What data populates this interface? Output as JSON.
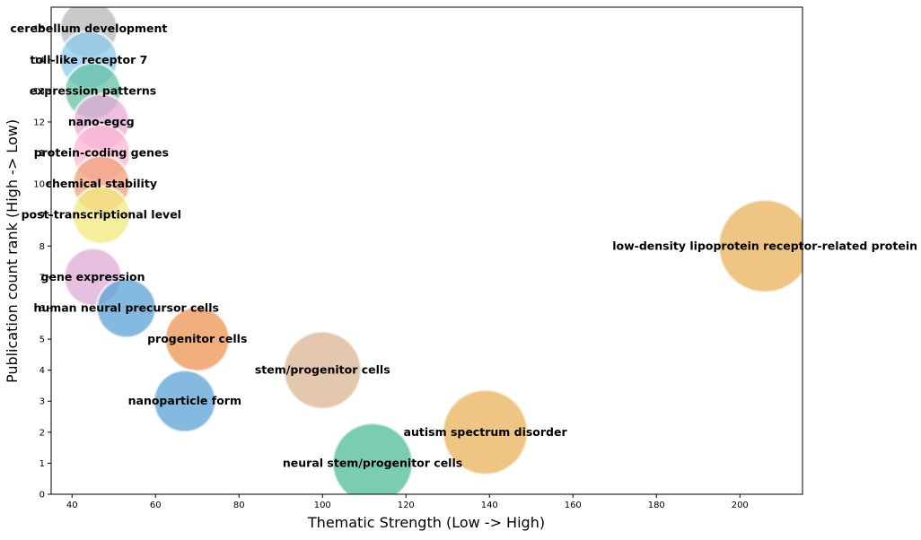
{
  "chart_data": {
    "type": "scatter",
    "subtype": "bubble",
    "title": "",
    "xlabel": "Thematic Strength (Low -> High)",
    "ylabel": "Publication count rank (High -> Low)",
    "xlim": [
      35,
      215
    ],
    "ylim": [
      0,
      15.7
    ],
    "xticks": [
      40,
      60,
      80,
      100,
      120,
      140,
      160,
      180,
      200
    ],
    "yticks": [
      0,
      1,
      2,
      3,
      4,
      5,
      6,
      7,
      8,
      9,
      10,
      11,
      12,
      13,
      14,
      15
    ],
    "grid": false,
    "legend": "none",
    "points": [
      {
        "label": "cerebellum development",
        "x": 44,
        "y": 15,
        "size": 1.0,
        "color": "#b7b7b7"
      },
      {
        "label": "toll-like receptor 7",
        "x": 44,
        "y": 14,
        "size": 1.0,
        "color": "#8cc8ec"
      },
      {
        "label": "expression patterns",
        "x": 45,
        "y": 13,
        "size": 0.95,
        "color": "#66c2a5"
      },
      {
        "label": "nano-egcg",
        "x": 47,
        "y": 12,
        "size": 0.95,
        "color": "#e7a9d5"
      },
      {
        "label": "protein-coding genes",
        "x": 47,
        "y": 11,
        "size": 1.0,
        "color": "#f8b7d3"
      },
      {
        "label": "chemical stability",
        "x": 47,
        "y": 10,
        "size": 0.98,
        "color": "#f0a07a"
      },
      {
        "label": "post-transcriptional level",
        "x": 47,
        "y": 9,
        "size": 1.0,
        "color": "#f2e87c"
      },
      {
        "label": "gene expression",
        "x": 45,
        "y": 7,
        "size": 1.0,
        "color": "#dfa9d6"
      },
      {
        "label": "human neural precursor cells",
        "x": 53,
        "y": 6,
        "size": 1.05,
        "color": "#5ba3d4"
      },
      {
        "label": "progenitor cells",
        "x": 70,
        "y": 5,
        "size": 1.25,
        "color": "#ec9451"
      },
      {
        "label": "nanoparticle form",
        "x": 67,
        "y": 3,
        "size": 1.15,
        "color": "#5ba3d4"
      },
      {
        "label": "stem/progenitor cells",
        "x": 100,
        "y": 4,
        "size": 1.5,
        "color": "#dab493"
      },
      {
        "label": "neural stem/progenitor cells",
        "x": 112,
        "y": 1,
        "size": 1.6,
        "color": "#4dbb98"
      },
      {
        "label": "autism spectrum disorder",
        "x": 139,
        "y": 2,
        "size": 1.8,
        "color": "#e8b15a"
      },
      {
        "label": "low-density lipoprotein receptor-related protein",
        "x": 206,
        "y": 8,
        "size": 2.15,
        "color": "#e8b15a"
      }
    ]
  }
}
